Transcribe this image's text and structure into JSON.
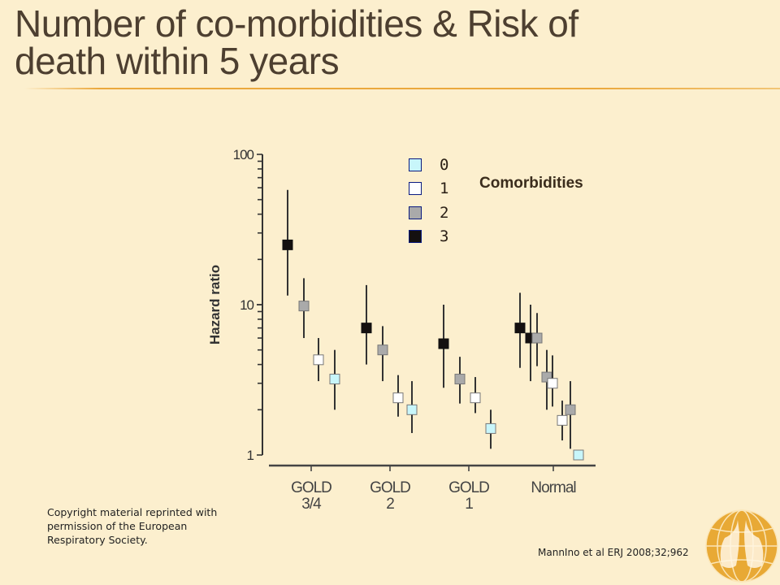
{
  "slide": {
    "title_line1": "Number of co-morbidities & Risk of",
    "title_line2": "death within 5 years",
    "copyright": "Copyright material reprinted with permission of the European Respiratory Society.",
    "citation": "MannIno et al ERJ 2008;32;962",
    "logo_icon": "lungs-globe-logo"
  },
  "chart_data": {
    "type": "scatter",
    "subtype": "point-with-error-bars",
    "title": "",
    "xlabel": "",
    "ylabel": "Hazard ratio",
    "yscale": "log",
    "ylim": [
      1,
      100
    ],
    "yticks": [
      "1",
      "10",
      "100"
    ],
    "categories": [
      "GOLD 3/4",
      "GOLD 2",
      "GOLD 1",
      "Normal"
    ],
    "category_labels": [
      [
        "GOLD",
        "3/4"
      ],
      [
        "GOLD",
        "2"
      ],
      [
        "GOLD",
        "1"
      ],
      [
        "Normal",
        ""
      ]
    ],
    "legend": {
      "title": "Comorbidities",
      "placement": "top-right",
      "entries": [
        {
          "label": "0",
          "color": "#c8f6fa"
        },
        {
          "label": "1",
          "color": "#ffffff"
        },
        {
          "label": "2",
          "color": "#aaaaaa"
        },
        {
          "label": "3",
          "color": "#141010"
        }
      ]
    },
    "series": [
      {
        "name": "3",
        "color": "#141010",
        "points": [
          {
            "category": "GOLD 3/4",
            "value": 25,
            "low": 11.5,
            "high": 58
          },
          {
            "category": "GOLD 2",
            "value": 7,
            "low": 4,
            "high": 13.5
          },
          {
            "category": "GOLD 1",
            "value": 5.5,
            "low": 2.8,
            "high": 10
          },
          {
            "category": "Normal",
            "value": 7,
            "low": 3.8,
            "high": 12
          },
          {
            "category": "Normal",
            "value": 6,
            "low": 3.1,
            "high": 10
          }
        ]
      },
      {
        "name": "2",
        "color": "#aaaaaa",
        "points": [
          {
            "category": "GOLD 3/4",
            "value": 9.8,
            "low": 6,
            "high": 15
          },
          {
            "category": "GOLD 2",
            "value": 5,
            "low": 3.1,
            "high": 7.2
          },
          {
            "category": "GOLD 1",
            "value": 3.2,
            "low": 2.2,
            "high": 4.5
          },
          {
            "category": "Normal",
            "value": 6,
            "low": 3.9,
            "high": 8.8
          },
          {
            "category": "Normal",
            "value": 3.3,
            "low": 2,
            "high": 5
          },
          {
            "category": "Normal",
            "value": 2,
            "low": 1.1,
            "high": 3.1
          }
        ]
      },
      {
        "name": "1",
        "color": "#ffffff",
        "points": [
          {
            "category": "GOLD 3/4",
            "value": 4.3,
            "low": 3.1,
            "high": 6
          },
          {
            "category": "GOLD 2",
            "value": 2.4,
            "low": 1.8,
            "high": 3.4
          },
          {
            "category": "GOLD 1",
            "value": 2.4,
            "low": 1.9,
            "high": 3.3
          },
          {
            "category": "Normal",
            "value": 3,
            "low": 2.1,
            "high": 4.6
          },
          {
            "category": "Normal",
            "value": 1.7,
            "low": 1.25,
            "high": 2.3
          }
        ]
      },
      {
        "name": "0",
        "color": "#c8f6fa",
        "points": [
          {
            "category": "GOLD 3/4",
            "value": 3.2,
            "low": 2,
            "high": 5
          },
          {
            "category": "GOLD 2",
            "value": 2,
            "low": 1.4,
            "high": 3.1
          },
          {
            "category": "GOLD 1",
            "value": 1.5,
            "low": 1.1,
            "high": 2
          },
          {
            "category": "Normal",
            "value": 1,
            "low": 1,
            "high": 1
          }
        ]
      }
    ],
    "grid": false
  }
}
